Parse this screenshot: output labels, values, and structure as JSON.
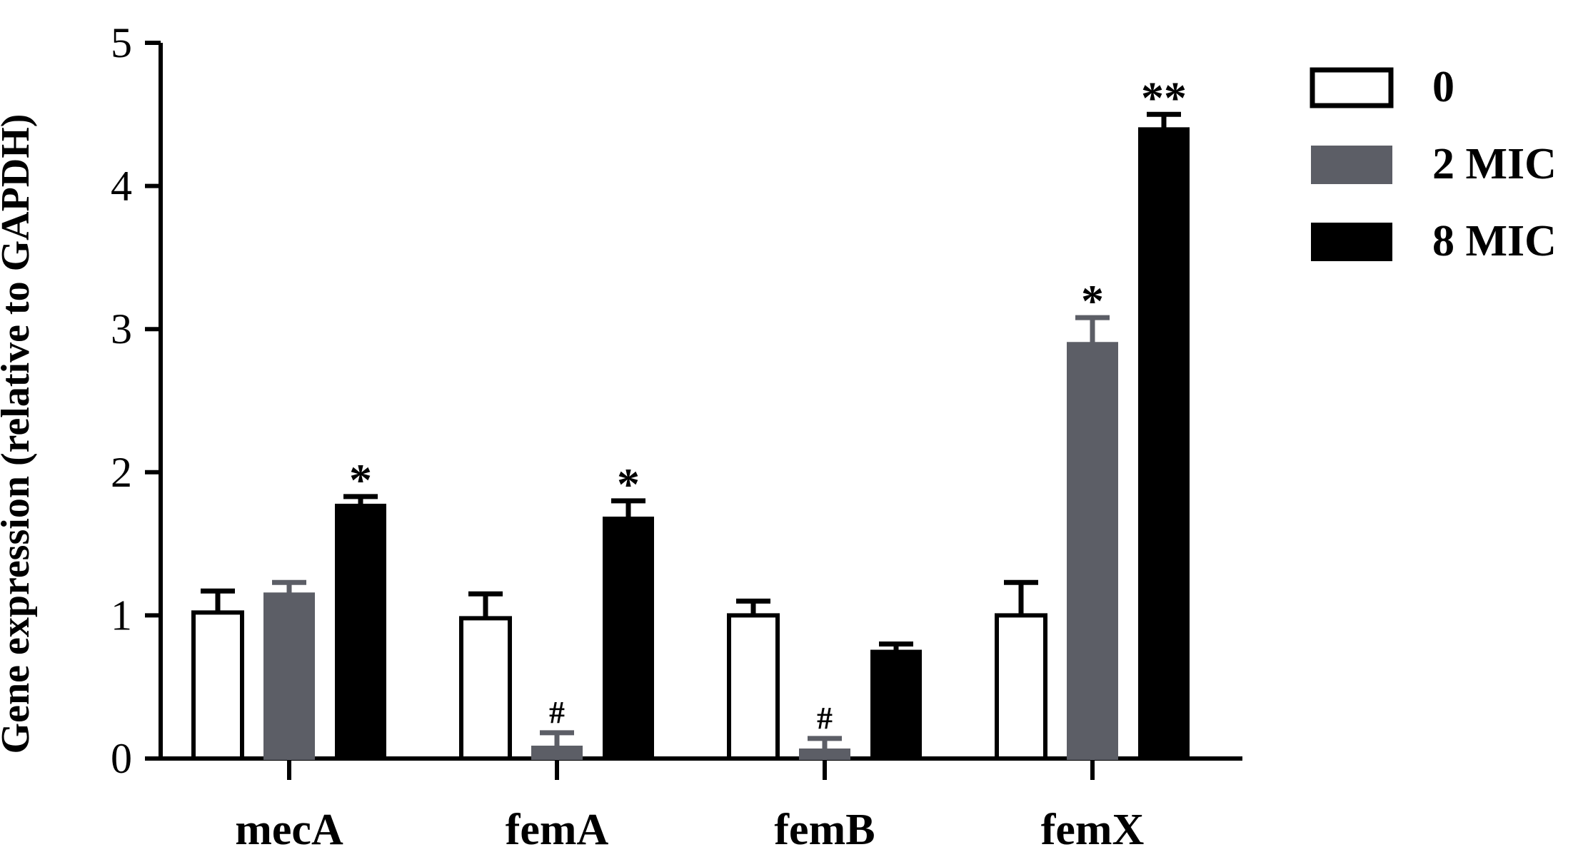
{
  "chart_data": {
    "type": "bar",
    "title": "",
    "xlabel": "",
    "ylabel": "Gene expression (relative to GAPDH)",
    "ylim": [
      0,
      5
    ],
    "yticks": [
      "0",
      "1",
      "2",
      "3",
      "4",
      "5"
    ],
    "categories": [
      "mecA",
      "femA",
      "femB",
      "femX"
    ],
    "legend_position": "right",
    "series": [
      {
        "name": "0",
        "color": "#ffffff",
        "stroke": "#000000",
        "values": [
          1.02,
          0.98,
          1.0,
          1.0
        ],
        "errors": [
          0.15,
          0.17,
          0.1,
          0.23
        ],
        "annotations": [
          "",
          "",
          "",
          ""
        ]
      },
      {
        "name": "2 MIC",
        "color": "#5c5e66",
        "stroke": "#5c5e66",
        "values": [
          1.15,
          0.08,
          0.06,
          2.9
        ],
        "errors": [
          0.08,
          0.1,
          0.08,
          0.18
        ],
        "annotations": [
          "",
          "#",
          "#",
          "*"
        ]
      },
      {
        "name": "8 MIC",
        "color": "#000000",
        "stroke": "#000000",
        "values": [
          1.77,
          1.68,
          0.75,
          4.4
        ],
        "errors": [
          0.06,
          0.12,
          0.05,
          0.1
        ],
        "annotations": [
          "*",
          "*",
          "",
          "**"
        ]
      }
    ]
  }
}
